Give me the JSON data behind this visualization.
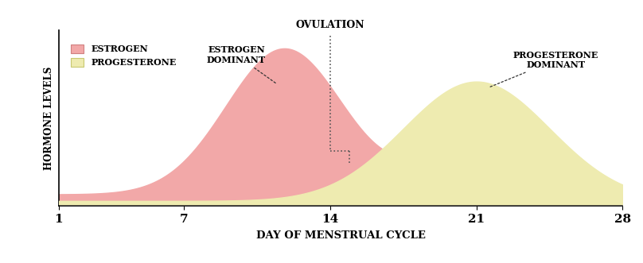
{
  "xlabel": "DAY OF MENSTRUAL CYCLE",
  "ylabel": "HORMONE LEVELS",
  "xticks": [
    1,
    7,
    14,
    21,
    28
  ],
  "xlim": [
    1,
    28
  ],
  "estrogen_color": "#f2a8a8",
  "progesterone_color": "#eeebb0",
  "background_color": "#ffffff",
  "estrogen_label": "ESTROGEN",
  "progesterone_label": "PROGESTERONE",
  "annotation_ovulation": "OVULATION",
  "annotation_estrogen_dom": "ESTROGEN\nDOMINANT",
  "annotation_progesterone_dom": "PROGESTERONE\nDOMINANT",
  "ovulation_day": 14.0,
  "estrogen_peak_day": 12.0,
  "progesterone_peak_day": 21.0
}
